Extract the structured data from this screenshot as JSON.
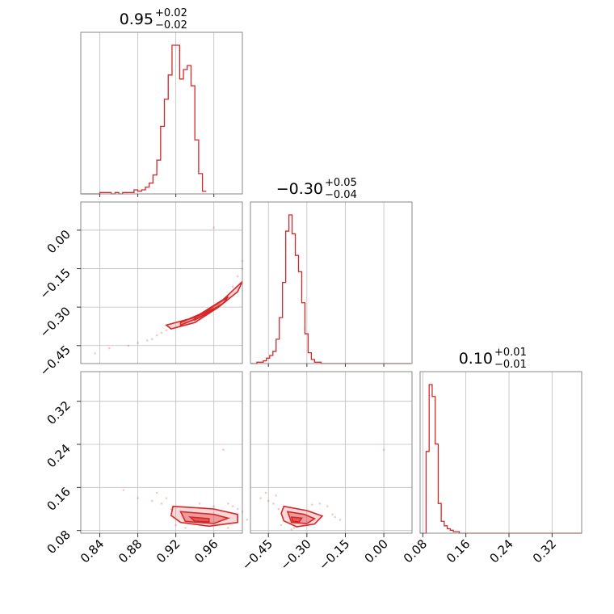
{
  "chart_data": {
    "type": "corner",
    "color": "#d62728",
    "grid": true,
    "parameters": [
      {
        "id": "p0",
        "title_value": "0.95",
        "title_plus": "+0.02",
        "title_minus": "−0.02",
        "range": [
          0.82,
          0.99
        ],
        "ticks": [
          {
            "value": 0.84,
            "label": "0.84"
          },
          {
            "value": 0.88,
            "label": "0.88"
          },
          {
            "value": 0.92,
            "label": "0.92"
          },
          {
            "value": 0.96,
            "label": "0.96"
          }
        ],
        "histogram": {
          "start": 0.82,
          "bin_width": 0.004,
          "counts": [
            0,
            0,
            0,
            0,
            0,
            1,
            1,
            1,
            0,
            1,
            0,
            1,
            1,
            1,
            3,
            2,
            3,
            5,
            8,
            14,
            25,
            50,
            70,
            88,
            110,
            110,
            85,
            92,
            95,
            80,
            40,
            15,
            2
          ]
        }
      },
      {
        "id": "p1",
        "title_value": "−0.30",
        "title_plus": "+0.05",
        "title_minus": "−0.04",
        "range": [
          -0.52,
          0.11
        ],
        "ticks": [
          {
            "value": -0.45,
            "label": "−0.45"
          },
          {
            "value": -0.3,
            "label": "−0.30"
          },
          {
            "value": -0.15,
            "label": "−0.15"
          },
          {
            "value": 0.0,
            "label": "0.00"
          }
        ],
        "histogram": {
          "start": -0.52,
          "bin_width": 0.0125,
          "counts": [
            0,
            0,
            1,
            1,
            2,
            4,
            6,
            9,
            18,
            34,
            60,
            98,
            110,
            96,
            80,
            68,
            45,
            22,
            8,
            3,
            1,
            1,
            0,
            0,
            0,
            0,
            0,
            0,
            0,
            0,
            0,
            0,
            0,
            0,
            0,
            0,
            0,
            0,
            0,
            0,
            0,
            0,
            0,
            0,
            0,
            0,
            0,
            0,
            0,
            0
          ]
        }
      },
      {
        "id": "p2",
        "title_value": "0.10",
        "title_plus": "+0.01",
        "title_minus": "−0.01",
        "range": [
          0.075,
          0.375
        ],
        "ticks": [
          {
            "value": 0.08,
            "label": "0.08"
          },
          {
            "value": 0.16,
            "label": "0.16"
          },
          {
            "value": 0.24,
            "label": "0.24"
          },
          {
            "value": 0.32,
            "label": "0.32"
          }
        ],
        "histogram": {
          "start": 0.075,
          "bin_width": 0.0056,
          "counts": [
            0,
            0,
            55,
            100,
            92,
            60,
            20,
            8,
            5,
            3,
            2,
            1,
            1,
            0,
            0,
            0,
            0,
            0,
            0,
            0,
            0,
            0,
            0,
            0,
            0,
            0,
            0,
            0,
            0,
            0,
            0,
            0,
            0,
            0,
            0,
            0,
            0,
            0,
            0,
            0,
            0,
            0,
            0,
            0,
            0,
            0,
            0,
            0,
            0,
            0,
            0,
            0,
            0,
            0
          ]
        }
      }
    ],
    "pairs": [
      {
        "x_param": 0,
        "y_param": 1,
        "contours": [
          {
            "level": 1,
            "points": [
              [
                0.91,
                -0.37
              ],
              [
                0.94,
                -0.34
              ],
              [
                0.97,
                -0.27
              ],
              [
                0.99,
                -0.2
              ],
              [
                0.985,
                -0.24
              ],
              [
                0.965,
                -0.3
              ],
              [
                0.94,
                -0.36
              ],
              [
                0.915,
                -0.385
              ]
            ]
          },
          {
            "level": 2,
            "points": [
              [
                0.925,
                -0.36
              ],
              [
                0.95,
                -0.32
              ],
              [
                0.975,
                -0.26
              ],
              [
                0.97,
                -0.285
              ],
              [
                0.945,
                -0.34
              ],
              [
                0.925,
                -0.37
              ]
            ]
          },
          {
            "level": 3,
            "points": [
              [
                0.94,
                -0.34
              ],
              [
                0.96,
                -0.305
              ],
              [
                0.955,
                -0.32
              ],
              [
                0.94,
                -0.35
              ]
            ]
          }
        ],
        "samples": [
          [
            0.835,
            -0.48
          ],
          [
            0.85,
            -0.46
          ],
          [
            0.87,
            -0.45
          ],
          [
            0.88,
            -0.44
          ],
          [
            0.89,
            -0.43
          ],
          [
            0.895,
            -0.425
          ],
          [
            0.9,
            -0.41
          ],
          [
            0.905,
            -0.4
          ],
          [
            0.91,
            -0.39
          ],
          [
            0.93,
            -0.36
          ],
          [
            0.955,
            -0.31
          ],
          [
            0.975,
            -0.26
          ],
          [
            0.98,
            -0.22
          ],
          [
            0.985,
            -0.18
          ],
          [
            0.99,
            -0.15
          ],
          [
            0.99,
            -0.12
          ],
          [
            0.96,
            0.01
          ],
          [
            0.92,
            -0.38
          ],
          [
            0.945,
            -0.33
          ],
          [
            0.965,
            -0.29
          ]
        ]
      },
      {
        "x_param": 0,
        "y_param": 2,
        "contours": [
          {
            "level": 1,
            "points": [
              [
                0.917,
                0.125
              ],
              [
                0.96,
                0.12
              ],
              [
                0.985,
                0.11
              ],
              [
                0.985,
                0.095
              ],
              [
                0.955,
                0.088
              ],
              [
                0.925,
                0.095
              ],
              [
                0.915,
                0.108
              ]
            ]
          },
          {
            "level": 2,
            "points": [
              [
                0.925,
                0.115
              ],
              [
                0.96,
                0.11
              ],
              [
                0.975,
                0.103
              ],
              [
                0.96,
                0.093
              ],
              [
                0.93,
                0.097
              ]
            ]
          },
          {
            "level": 3,
            "points": [
              [
                0.935,
                0.105
              ],
              [
                0.955,
                0.102
              ],
              [
                0.955,
                0.096
              ],
              [
                0.94,
                0.097
              ]
            ]
          }
        ],
        "samples": [
          [
            0.865,
            0.155
          ],
          [
            0.88,
            0.14
          ],
          [
            0.895,
            0.135
          ],
          [
            0.9,
            0.15
          ],
          [
            0.905,
            0.13
          ],
          [
            0.91,
            0.14
          ],
          [
            0.915,
            0.12
          ],
          [
            0.97,
            0.23
          ],
          [
            0.975,
            0.13
          ],
          [
            0.98,
            0.125
          ],
          [
            0.985,
            0.12
          ],
          [
            0.99,
            0.115
          ],
          [
            0.995,
            0.1
          ],
          [
            0.92,
            0.09
          ],
          [
            0.93,
            0.085
          ],
          [
            0.945,
            0.13
          ],
          [
            0.96,
            0.125
          ],
          [
            0.975,
            0.085
          ]
        ]
      },
      {
        "x_param": 1,
        "y_param": 2,
        "contours": [
          {
            "level": 1,
            "points": [
              [
                -0.39,
                0.125
              ],
              [
                -0.3,
                0.117
              ],
              [
                -0.24,
                0.107
              ],
              [
                -0.27,
                0.092
              ],
              [
                -0.34,
                0.087
              ],
              [
                -0.39,
                0.098
              ],
              [
                -0.4,
                0.112
              ]
            ]
          },
          {
            "level": 2,
            "points": [
              [
                -0.375,
                0.115
              ],
              [
                -0.31,
                0.11
              ],
              [
                -0.27,
                0.102
              ],
              [
                -0.3,
                0.093
              ],
              [
                -0.36,
                0.095
              ]
            ]
          },
          {
            "level": 3,
            "points": [
              [
                -0.36,
                0.105
              ],
              [
                -0.32,
                0.103
              ],
              [
                -0.33,
                0.096
              ],
              [
                -0.355,
                0.097
              ]
            ]
          }
        ],
        "samples": [
          [
            -0.48,
            0.14
          ],
          [
            -0.46,
            0.15
          ],
          [
            -0.45,
            0.135
          ],
          [
            -0.43,
            0.13
          ],
          [
            -0.42,
            0.145
          ],
          [
            -0.41,
            0.12
          ],
          [
            -0.2,
            0.11
          ],
          [
            -0.19,
            0.105
          ],
          [
            -0.17,
            0.1
          ],
          [
            -0.22,
            0.125
          ],
          [
            -0.25,
            0.13
          ],
          [
            -0.28,
            0.128
          ],
          [
            -0.35,
            0.085
          ],
          [
            -0.36,
            0.082
          ],
          [
            0.0,
            0.23
          ],
          [
            -0.4,
            0.09
          ]
        ]
      }
    ]
  }
}
